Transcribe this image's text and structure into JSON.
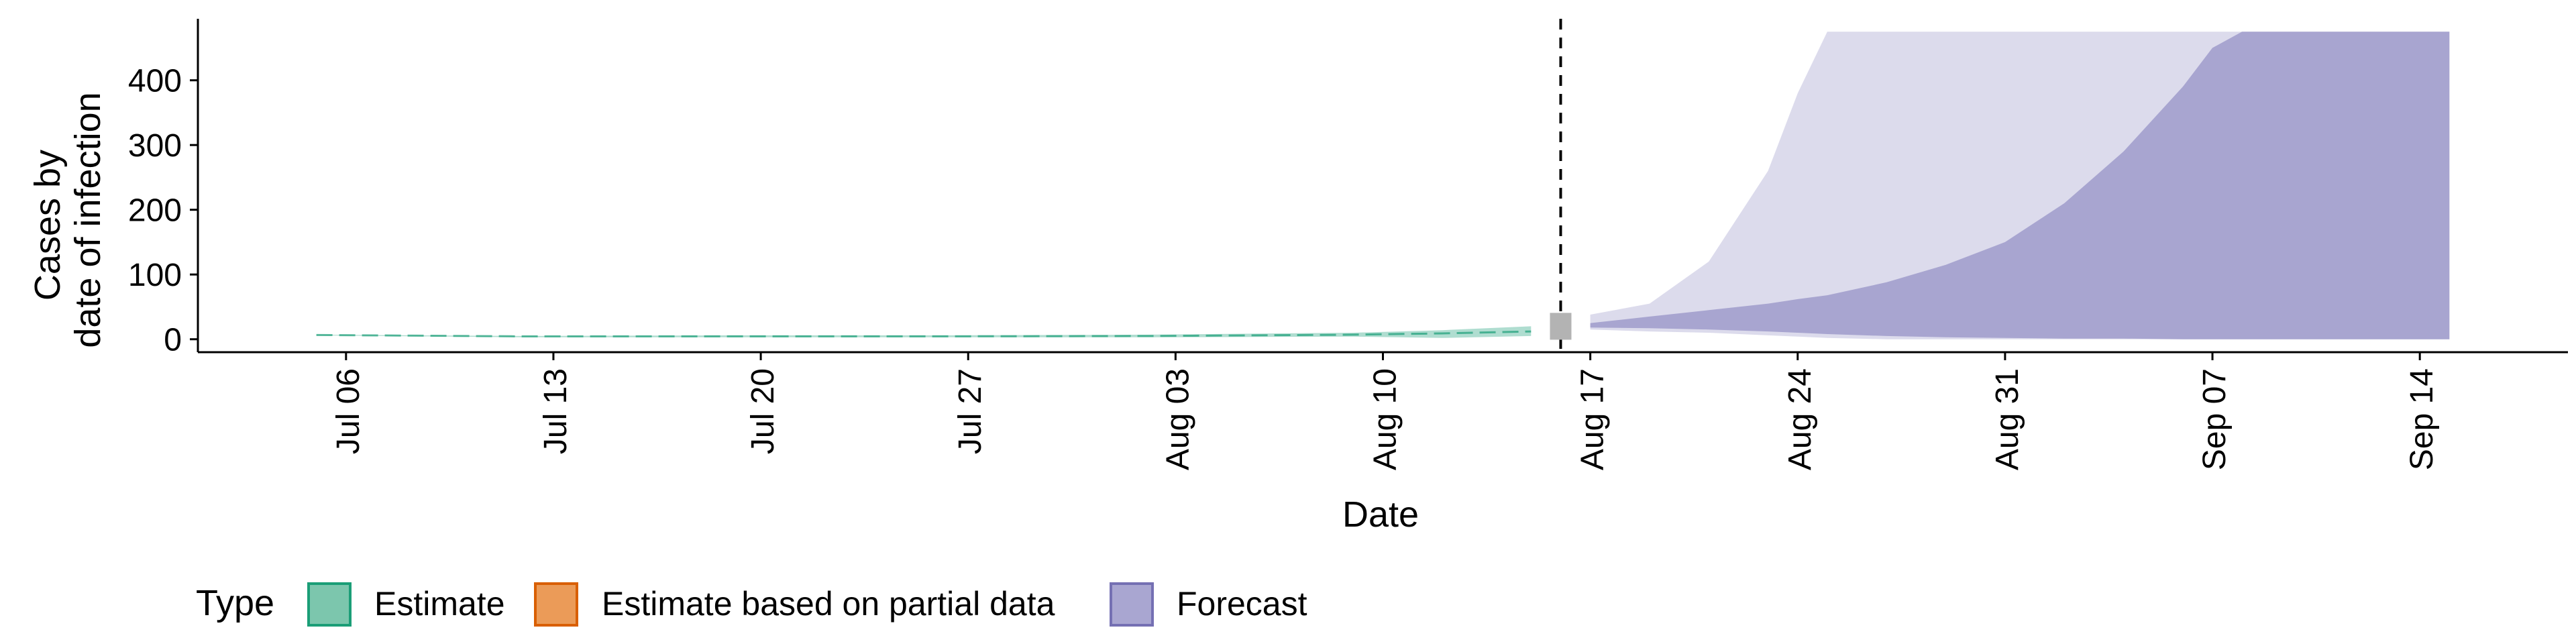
{
  "chart_data": {
    "type": "area",
    "title": "",
    "xlabel": "Date",
    "ylabel": [
      "Cases by",
      "date of infection"
    ],
    "xlim": [
      "2020-07-01",
      "2020-09-19"
    ],
    "ylim": [
      -20,
      495
    ],
    "x_ticks": [
      "2020-07-06",
      "2020-07-13",
      "2020-07-20",
      "2020-07-27",
      "2020-08-03",
      "2020-08-10",
      "2020-08-17",
      "2020-08-24",
      "2020-08-31",
      "2020-09-07",
      "2020-09-14"
    ],
    "x_tick_labels": [
      "Jul 06",
      "Jul 13",
      "Jul 20",
      "Jul 27",
      "Aug 03",
      "Aug 10",
      "Aug 17",
      "Aug 24",
      "Aug 31",
      "Sep 07",
      "Sep 14"
    ],
    "y_ticks": [
      0,
      100,
      200,
      300,
      400
    ],
    "y_tick_labels": [
      "0",
      "100",
      "200",
      "300",
      "400"
    ],
    "vline_date": "2020-08-16",
    "grid": false,
    "legend_position": "bottom",
    "legend_title": "Type",
    "legend": [
      {
        "label": "Estimate",
        "fill": "#7cc6ad",
        "stroke": "#1b9e77"
      },
      {
        "label": "Estimate based on partial data",
        "fill": "#eb9b58",
        "stroke": "#d95f02"
      },
      {
        "label": "Forecast",
        "fill": "#a9a6d1",
        "stroke": "#7570b3"
      }
    ],
    "colors": {
      "estimate": "#1b9e77",
      "partial": "#d95f02",
      "forecast": "#7570b3",
      "forecast_outer_band": "#dcdbec",
      "forecast_inner_band": "#a8a5d0",
      "vline_marker": "#b3b3b3"
    },
    "series": [
      {
        "name": "Estimate",
        "x": [
          "2020-07-05",
          "2020-07-12",
          "2020-07-19",
          "2020-07-26",
          "2020-08-02",
          "2020-08-09",
          "2020-08-12",
          "2020-08-15"
        ],
        "upper": [
          7,
          5,
          6,
          6,
          7,
          10,
          14,
          20
        ],
        "lower": [
          6,
          3,
          3,
          3,
          3,
          4,
          2,
          5
        ],
        "median": [
          6.5,
          4.5,
          4.5,
          4.5,
          5,
          7,
          9,
          12
        ]
      },
      {
        "name": "Forecast",
        "x": [
          "2020-08-17",
          "2020-08-19",
          "2020-08-21",
          "2020-08-23",
          "2020-08-24",
          "2020-08-25",
          "2020-08-27",
          "2020-08-29",
          "2020-08-31",
          "2020-09-02",
          "2020-09-04",
          "2020-09-06",
          "2020-09-07",
          "2020-09-08",
          "2020-09-10",
          "2020-09-12",
          "2020-09-15"
        ],
        "outer_upper": [
          38,
          55,
          120,
          260,
          380,
          475,
          475,
          475,
          475,
          475,
          475,
          475,
          475,
          475,
          475,
          475,
          475
        ],
        "outer_lower": [
          15,
          12,
          10,
          6,
          4,
          2,
          0,
          0,
          0,
          0,
          0,
          0,
          0,
          0,
          0,
          0,
          0
        ],
        "inner_upper": [
          25,
          35,
          45,
          55,
          62,
          68,
          88,
          115,
          150,
          210,
          290,
          390,
          450,
          475,
          475,
          475,
          475
        ],
        "inner_lower": [
          18,
          17,
          15,
          12,
          10,
          8,
          5,
          3,
          2,
          1,
          1,
          0,
          0,
          0,
          0,
          0,
          0
        ]
      }
    ]
  }
}
